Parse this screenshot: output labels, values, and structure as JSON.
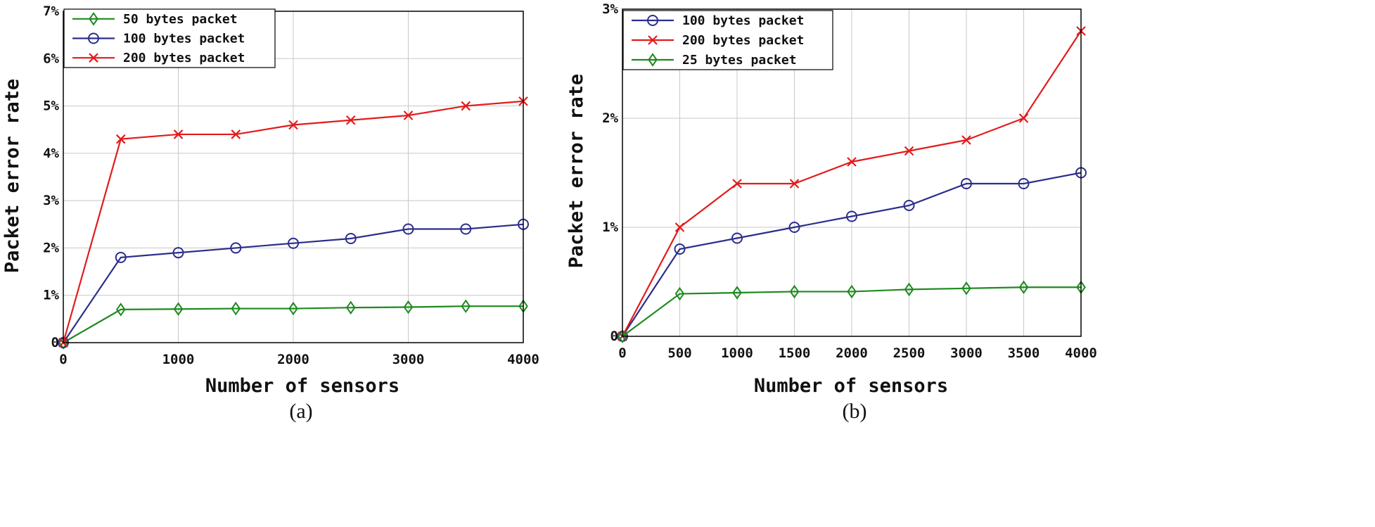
{
  "chart_data": [
    {
      "type": "line",
      "panel_label": "(a)",
      "title": "",
      "xlabel": "Number of sensors",
      "ylabel": "Packet error rate",
      "xlim": [
        0,
        4000
      ],
      "ylim": [
        0,
        7
      ],
      "x_ticks": [
        0,
        1000,
        2000,
        3000,
        4000
      ],
      "x_tick_labels": [
        "0",
        "1000",
        "2000",
        "3000",
        "4000"
      ],
      "y_ticks": [
        0,
        1,
        2,
        3,
        4,
        5,
        6,
        7
      ],
      "y_tick_labels": [
        "0",
        "1%",
        "2%",
        "3%",
        "4%",
        "5%",
        "6%",
        "7%"
      ],
      "grid": true,
      "legend_position": "top-left",
      "x": [
        0,
        500,
        1000,
        1500,
        2000,
        2500,
        3000,
        3500,
        4000
      ],
      "series": [
        {
          "name": "50 bytes packet",
          "color": "#1e8a1e",
          "marker": "diamond",
          "values": [
            0,
            0.7,
            0.71,
            0.72,
            0.72,
            0.74,
            0.75,
            0.77,
            0.77
          ]
        },
        {
          "name": "100 bytes packet",
          "color": "#2b2e8c",
          "marker": "circle",
          "values": [
            0,
            1.8,
            1.9,
            2.0,
            2.1,
            2.2,
            2.4,
            2.4,
            2.5
          ]
        },
        {
          "name": "200 bytes packet",
          "color": "#e31b1b",
          "marker": "cross",
          "values": [
            0,
            4.3,
            4.4,
            4.4,
            4.6,
            4.7,
            4.8,
            5.0,
            5.1
          ]
        }
      ]
    },
    {
      "type": "line",
      "panel_label": "(b)",
      "title": "",
      "xlabel": "Number of sensors",
      "ylabel": "Packet error rate",
      "xlim": [
        0,
        4000
      ],
      "ylim": [
        0,
        3
      ],
      "x_ticks": [
        0,
        500,
        1000,
        1500,
        2000,
        2500,
        3000,
        3500,
        4000
      ],
      "x_tick_labels": [
        "0",
        "500",
        "1000",
        "1500",
        "2000",
        "2500",
        "3000",
        "3500",
        "4000"
      ],
      "y_ticks": [
        0,
        1,
        2,
        3
      ],
      "y_tick_labels": [
        "0",
        "1%",
        "2%",
        "3%"
      ],
      "grid": true,
      "legend_position": "top-left",
      "x": [
        0,
        500,
        1000,
        1500,
        2000,
        2500,
        3000,
        3500,
        4000
      ],
      "series": [
        {
          "name": "100 bytes packet",
          "color": "#2b2e8c",
          "marker": "circle",
          "values": [
            0,
            0.8,
            0.9,
            1.0,
            1.1,
            1.2,
            1.4,
            1.4,
            1.5
          ]
        },
        {
          "name": "200 bytes packet",
          "color": "#e31b1b",
          "marker": "cross",
          "values": [
            0,
            1.0,
            1.4,
            1.4,
            1.6,
            1.7,
            1.8,
            2.0,
            2.8
          ]
        },
        {
          "name": "25 bytes packet",
          "color": "#1e8a1e",
          "marker": "diamond",
          "values": [
            0,
            0.39,
            0.4,
            0.41,
            0.41,
            0.43,
            0.44,
            0.45,
            0.45
          ]
        }
      ]
    }
  ]
}
